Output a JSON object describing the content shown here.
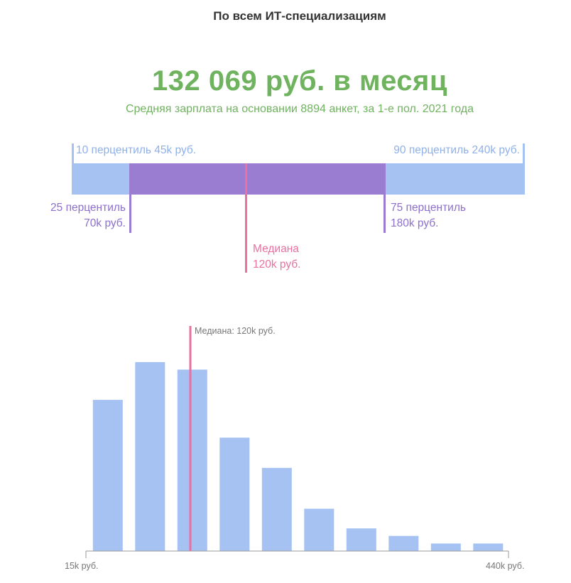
{
  "header": {
    "title": "По всем ИТ-специализациям",
    "salary": "132 069 руб. в месяц",
    "subtitle": "Средняя зарплата на основании 8894 анкет, за 1-е пол. 2021 года"
  },
  "percentiles": {
    "p10_label": "10 перцентиль 45k руб.",
    "p90_label": "90 перцентиль 240k руб.",
    "p25_line1": "25 перцентиль",
    "p25_line2": "70k руб.",
    "p75_line1": "75 перцентиль",
    "p75_line2": "180k руб.",
    "median_line1": "Медиана",
    "median_line2": "120k руб."
  },
  "colors": {
    "green": "#6fb35f",
    "blue": "#a5c2f2",
    "purple": "#9a7cd0",
    "pink": "#e9709f"
  },
  "chart_data": {
    "type": "bar",
    "xlabel_min": "15k руб.",
    "xlabel_max": "440k руб.",
    "median_label": "Медиана: 120k руб.",
    "x_range": [
      15,
      440
    ],
    "median": 120,
    "values": [
      100,
      125,
      120,
      75,
      55,
      28,
      15,
      10,
      5,
      5
    ],
    "ylim": [
      0,
      132
    ]
  }
}
